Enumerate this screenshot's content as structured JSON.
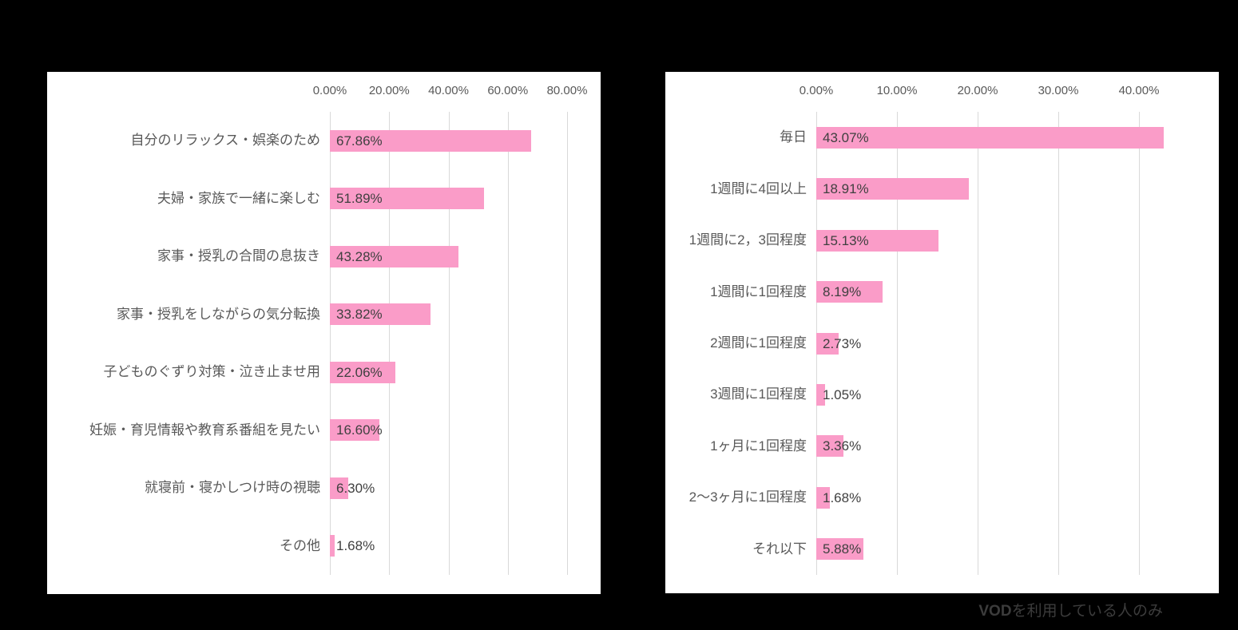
{
  "colors": {
    "background": "#000000",
    "panel": "#FFFFFF",
    "bar": "#FA9CC8",
    "gridline": "#D9D9D9",
    "category_label": "#595959",
    "axis_label": "#595959",
    "data_label": "#404040",
    "footnote": "#3C3C3C"
  },
  "footnote": {
    "bold_part": "VOD",
    "text_part": "を利用している人のみ"
  },
  "chart_data": [
    {
      "type": "bar",
      "orientation": "horizontal",
      "title": "",
      "xlabel": "",
      "ylabel": "",
      "xlim": [
        0,
        80
      ],
      "grid": true,
      "legend": false,
      "bar_color": "#FA9CC8",
      "x_tick_labels": [
        "0.00%",
        "20.00%",
        "40.00%",
        "60.00%",
        "80.00%"
      ],
      "categories": [
        "自分のリラックス・娯楽のため",
        "夫婦・家族で一緒に楽しむ",
        "家事・授乳の合間の息抜き",
        "家事・授乳をしながらの気分転換",
        "子どものぐずり対策・泣き止ませ用",
        "妊娠・育児情報や教育系番組を見たい",
        "就寝前・寝かしつけ時の視聴",
        "その他"
      ],
      "values": [
        67.86,
        51.89,
        43.28,
        33.82,
        22.06,
        16.6,
        6.3,
        1.68
      ],
      "data_labels": [
        "67.86%",
        "51.89%",
        "43.28%",
        "33.82%",
        "22.06%",
        "16.60%",
        "6.30%",
        "1.68%"
      ]
    },
    {
      "type": "bar",
      "orientation": "horizontal",
      "title": "",
      "xlabel": "",
      "ylabel": "",
      "xlim": [
        0,
        40
      ],
      "grid": true,
      "legend": false,
      "bar_color": "#FA9CC8",
      "x_tick_labels": [
        "0.00%",
        "10.00%",
        "20.00%",
        "30.00%",
        "40.00%"
      ],
      "categories": [
        "毎日",
        "1週間に4回以上",
        "1週間に2，3回程度",
        "1週間に1回程度",
        "2週間に1回程度",
        "3週間に1回程度",
        "1ヶ月に1回程度",
        "2〜3ヶ月に1回程度",
        "それ以下"
      ],
      "values": [
        43.07,
        18.91,
        15.13,
        8.19,
        2.73,
        1.05,
        3.36,
        1.68,
        5.88
      ],
      "data_labels": [
        "43.07%",
        "18.91%",
        "15.13%",
        "8.19%",
        "2.73%",
        "1.05%",
        "3.36%",
        "1.68%",
        "5.88%"
      ]
    }
  ]
}
